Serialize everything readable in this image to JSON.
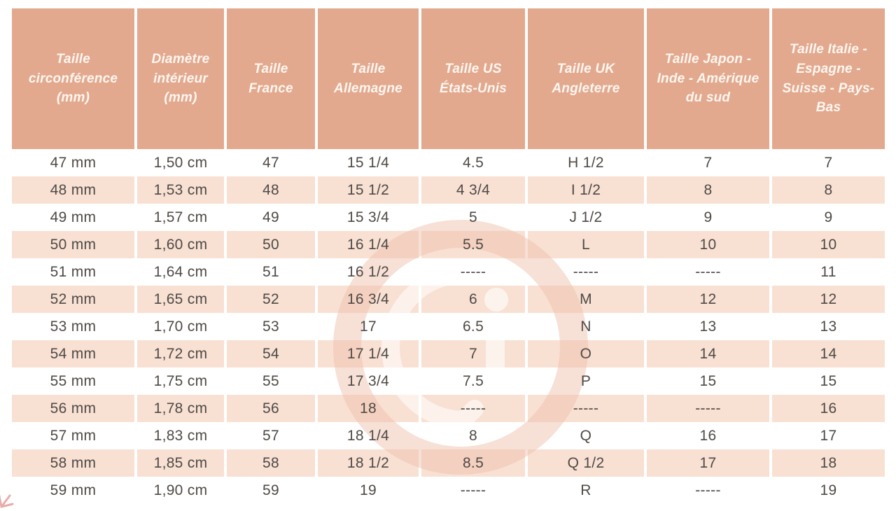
{
  "colors": {
    "header_bg": "#e2a98f",
    "header_text": "#fdf6ef",
    "stripe_bg": "#f8e0d3",
    "row_bg": "#ffffff",
    "body_text": "#4f4a46",
    "watermark_ring": "#eebfa9",
    "corner_mark": "#dd928d"
  },
  "watermark": {
    "letter": "G"
  },
  "chart_data": {
    "type": "table",
    "title": "",
    "columns": [
      "Taille circonférence (mm)",
      "Diamètre intérieur (mm)",
      "Taille France",
      "Taille Allemagne",
      "Taille US États-Unis",
      "Taille UK Angleterre",
      "Taille Japon - Inde - Amérique du sud",
      "Taille Italie - Espagne - Suisse - Pays-Bas"
    ],
    "rows": [
      [
        "47 mm",
        "1,50 cm",
        "47",
        "15 1/4",
        "4.5",
        "H 1/2",
        "7",
        "7"
      ],
      [
        "48 mm",
        "1,53 cm",
        "48",
        "15 1/2",
        "4 3/4",
        "I 1/2",
        "8",
        "8"
      ],
      [
        "49 mm",
        "1,57 cm",
        "49",
        "15 3/4",
        "5",
        "J 1/2",
        "9",
        "9"
      ],
      [
        "50 mm",
        "1,60 cm",
        "50",
        "16 1/4",
        "5.5",
        "L",
        "10",
        "10"
      ],
      [
        "51 mm",
        "1,64 cm",
        "51",
        "16 1/2",
        "-----",
        "-----",
        "-----",
        "11"
      ],
      [
        "52 mm",
        "1,65 cm",
        "52",
        "16 3/4",
        "6",
        "M",
        "12",
        "12"
      ],
      [
        "53 mm",
        "1,70 cm",
        "53",
        "17",
        "6.5",
        "N",
        "13",
        "13"
      ],
      [
        "54 mm",
        "1,72 cm",
        "54",
        "17 1/4",
        "7",
        "O",
        "14",
        "14"
      ],
      [
        "55 mm",
        "1,75 cm",
        "55",
        "17 3/4",
        "7.5",
        "P",
        "15",
        "15"
      ],
      [
        "56 mm",
        "1,78 cm",
        "56",
        "18",
        "-----",
        "-----",
        "-----",
        "16"
      ],
      [
        "57 mm",
        "1,83 cm",
        "57",
        "18 1/4",
        "8",
        "Q",
        "16",
        "17"
      ],
      [
        "58 mm",
        "1,85 cm",
        "58",
        "18 1/2",
        "8.5",
        "Q 1/2",
        "17",
        "18"
      ],
      [
        "59 mm",
        "1,90 cm",
        "59",
        "19",
        "-----",
        "R",
        "-----",
        "19"
      ]
    ]
  }
}
